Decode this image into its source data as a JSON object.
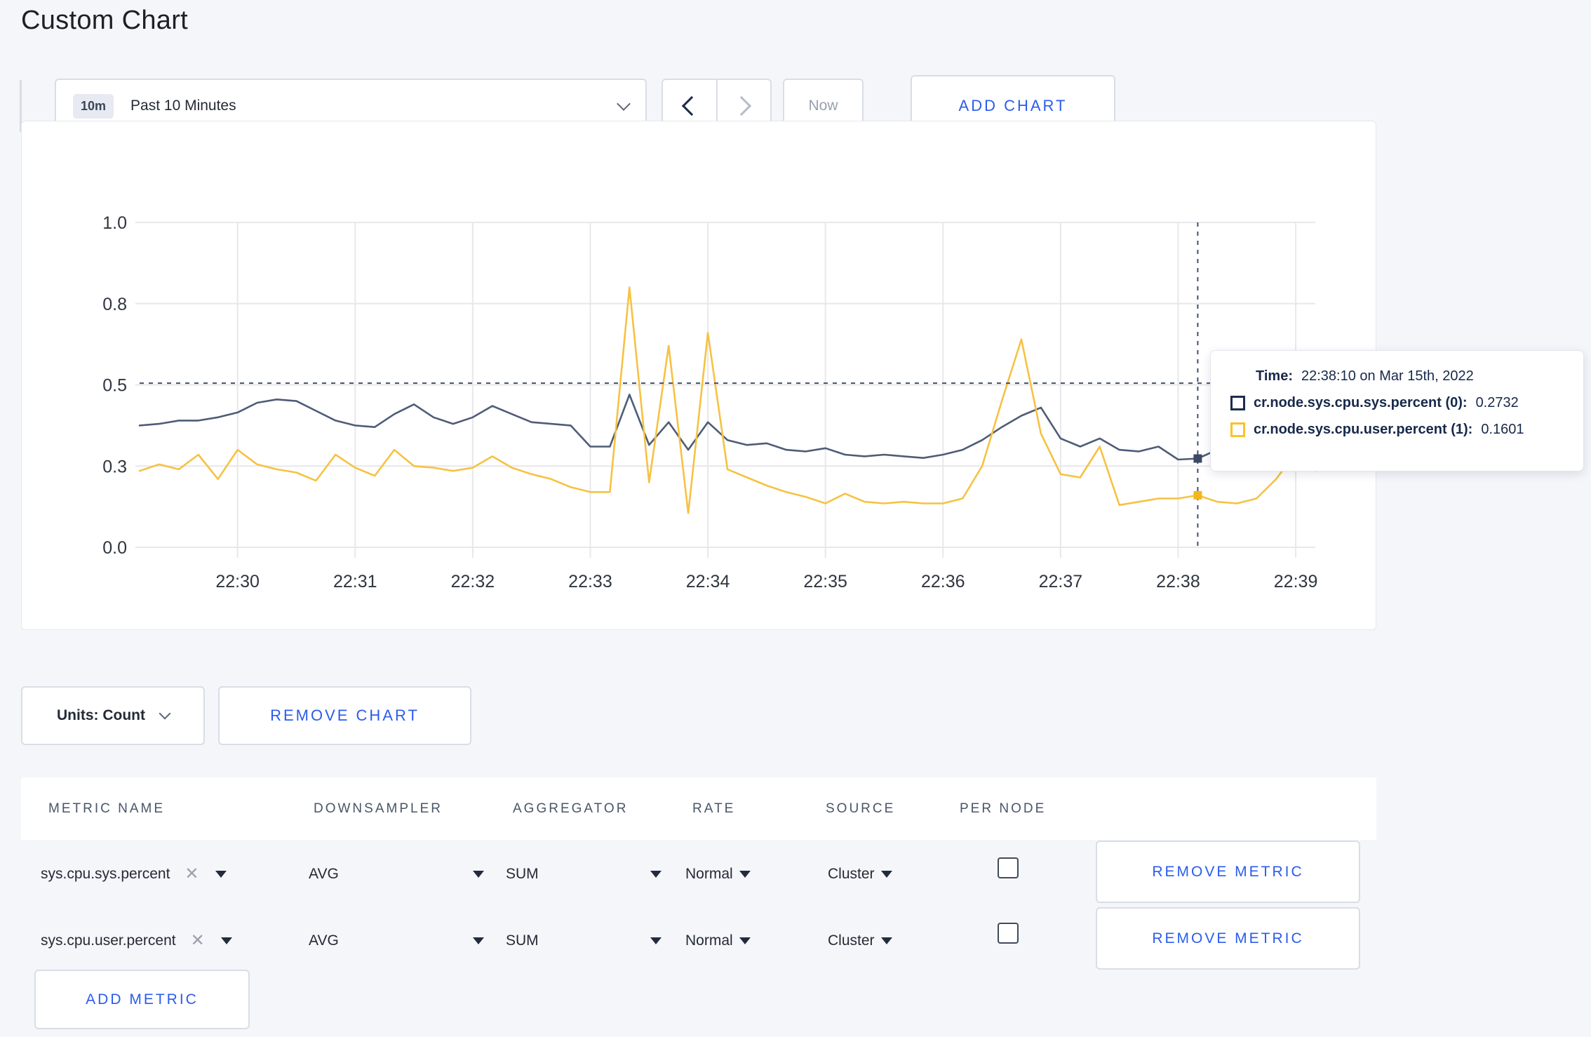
{
  "page": {
    "title": "Custom Chart",
    "background_color": "#f5f6fa",
    "accent_blue": "#2b5cec"
  },
  "toolbar": {
    "time_window": {
      "badge": "10m",
      "label": "Past 10 Minutes"
    },
    "now_label": "Now",
    "add_chart_label": "ADD CHART",
    "icons": {
      "time_window_chevron": "chevron-down",
      "prev": "chevron-left",
      "next": "chevron-right"
    }
  },
  "chart": {
    "grid_color": "#e8e8ec",
    "axis_text_color": "#30363f",
    "crosshair": {
      "time": "22:38:10",
      "hline_value": 0.505,
      "dash_color": "#41506b"
    },
    "y_ticks": [
      {
        "label": "1.0",
        "value": 1.0
      },
      {
        "label": "0.8",
        "value": 0.75
      },
      {
        "label": "0.5",
        "value": 0.5
      },
      {
        "label": "0.3",
        "value": 0.25
      },
      {
        "label": "0.0",
        "value": 0.0
      }
    ]
  },
  "chart_data": {
    "type": "line",
    "title": "",
    "xlabel": "",
    "ylabel": "",
    "ylim": [
      0,
      1
    ],
    "grid": true,
    "legend": "hidden (values shown in hover tooltip)",
    "x_tick_labels": [
      "22:30",
      "22:31",
      "22:32",
      "22:33",
      "22:34",
      "22:35",
      "22:36",
      "22:37",
      "22:38",
      "22:39"
    ],
    "x": [
      "22:29:10",
      "22:29:20",
      "22:29:30",
      "22:29:40",
      "22:29:50",
      "22:30:00",
      "22:30:10",
      "22:30:20",
      "22:30:30",
      "22:30:40",
      "22:30:50",
      "22:31:00",
      "22:31:10",
      "22:31:20",
      "22:31:30",
      "22:31:40",
      "22:31:50",
      "22:32:00",
      "22:32:10",
      "22:32:20",
      "22:32:30",
      "22:32:40",
      "22:32:50",
      "22:33:00",
      "22:33:10",
      "22:33:20",
      "22:33:30",
      "22:33:40",
      "22:33:50",
      "22:34:00",
      "22:34:10",
      "22:34:20",
      "22:34:30",
      "22:34:40",
      "22:34:50",
      "22:35:00",
      "22:35:10",
      "22:35:20",
      "22:35:30",
      "22:35:40",
      "22:35:50",
      "22:36:00",
      "22:36:10",
      "22:36:20",
      "22:36:30",
      "22:36:40",
      "22:36:50",
      "22:37:00",
      "22:37:10",
      "22:37:20",
      "22:37:30",
      "22:37:40",
      "22:37:50",
      "22:38:00",
      "22:38:10",
      "22:38:20",
      "22:38:30",
      "22:38:40",
      "22:38:50",
      "22:39:00",
      "22:39:10"
    ],
    "series": [
      {
        "name": "cr.node.sys.cpu.sys.percent (0)",
        "color": "#4e5c77",
        "dot_color": "#3e4a63",
        "values": [
          0.375,
          0.38,
          0.39,
          0.39,
          0.4,
          0.415,
          0.445,
          0.455,
          0.45,
          0.42,
          0.39,
          0.375,
          0.37,
          0.41,
          0.44,
          0.4,
          0.38,
          0.4,
          0.435,
          0.41,
          0.385,
          0.38,
          0.375,
          0.31,
          0.31,
          0.47,
          0.315,
          0.385,
          0.3,
          0.385,
          0.33,
          0.315,
          0.32,
          0.3,
          0.295,
          0.305,
          0.285,
          0.28,
          0.285,
          0.28,
          0.275,
          0.285,
          0.3,
          0.33,
          0.37,
          0.405,
          0.43,
          0.335,
          0.31,
          0.335,
          0.3,
          0.295,
          0.31,
          0.27,
          0.2732,
          0.3,
          0.31,
          0.3,
          0.295,
          0.3,
          0.305
        ]
      },
      {
        "name": "cr.node.sys.cpu.user.percent (1)",
        "color": "#f6c243",
        "dot_color": "#f3b71c",
        "values": [
          0.235,
          0.255,
          0.24,
          0.285,
          0.21,
          0.3,
          0.255,
          0.24,
          0.23,
          0.205,
          0.285,
          0.245,
          0.22,
          0.3,
          0.25,
          0.245,
          0.235,
          0.245,
          0.28,
          0.245,
          0.225,
          0.21,
          0.185,
          0.17,
          0.17,
          0.8,
          0.2,
          0.62,
          0.105,
          0.66,
          0.24,
          0.215,
          0.19,
          0.17,
          0.155,
          0.135,
          0.165,
          0.14,
          0.135,
          0.14,
          0.135,
          0.135,
          0.15,
          0.25,
          0.45,
          0.64,
          0.35,
          0.225,
          0.215,
          0.31,
          0.13,
          0.14,
          0.15,
          0.15,
          0.1601,
          0.14,
          0.135,
          0.15,
          0.21,
          0.29,
          0.235
        ]
      }
    ]
  },
  "tooltip": {
    "time_label": "Time:",
    "time_value": "22:38:10 on Mar 15th, 2022",
    "series": [
      {
        "label": "cr.node.sys.cpu.sys.percent (0):",
        "value": "0.2732",
        "color": "#1b2d4e"
      },
      {
        "label": "cr.node.sys.cpu.user.percent (1):",
        "value": "0.1601",
        "color": "#fdc12b"
      }
    ]
  },
  "units_bar": {
    "units_label": "Units: Count",
    "remove_chart_label": "REMOVE CHART"
  },
  "metrics_table": {
    "headers": [
      "METRIC NAME",
      "DOWNSAMPLER",
      "AGGREGATOR",
      "RATE",
      "SOURCE",
      "PER NODE"
    ],
    "remove_metric_label": "REMOVE METRIC",
    "add_metric_label": "ADD METRIC",
    "remove_icon": "x",
    "rows": [
      {
        "metric": "sys.cpu.sys.percent",
        "downsampler": "AVG",
        "aggregator": "SUM",
        "rate": "Normal",
        "source": "Cluster",
        "per_node_checked": false
      },
      {
        "metric": "sys.cpu.user.percent",
        "downsampler": "AVG",
        "aggregator": "SUM",
        "rate": "Normal",
        "source": "Cluster",
        "per_node_checked": false
      }
    ]
  }
}
